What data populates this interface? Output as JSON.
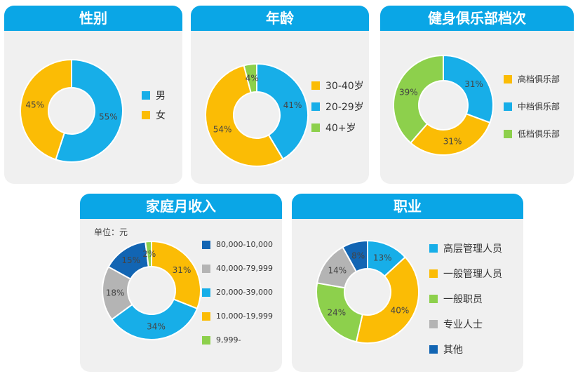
{
  "chart_data": [
    {
      "id": "gender",
      "type": "pie",
      "title": "性别",
      "categories": [
        "男",
        "女"
      ],
      "values": [
        55,
        45
      ],
      "labels": [
        "55%",
        "45%"
      ],
      "colors": [
        "#17aee8",
        "#fbbc05"
      ],
      "legend_position": "right"
    },
    {
      "id": "age",
      "type": "pie",
      "title": "年龄",
      "categories": [
        "30-40岁",
        "20-29岁",
        "40+岁"
      ],
      "slice_order": [
        "20-29岁",
        "30-40岁",
        "40+岁"
      ],
      "values": [
        41,
        54,
        4
      ],
      "labels": [
        "41%",
        "54%",
        "4%"
      ],
      "colors": [
        "#17aee8",
        "#fbbc05",
        "#8dd04c"
      ],
      "legend_colors": [
        "#fbbc05",
        "#17aee8",
        "#8dd04c"
      ],
      "legend_position": "right"
    },
    {
      "id": "club",
      "type": "pie",
      "title": "健身俱乐部档次",
      "categories": [
        "高档俱乐部",
        "中档俱乐部",
        "低档俱乐部"
      ],
      "slice_order": [
        "中档俱乐部",
        "高档俱乐部",
        "低档俱乐部"
      ],
      "values": [
        31,
        31,
        39
      ],
      "labels": [
        "31%",
        "31%",
        "39%"
      ],
      "colors": [
        "#17aee8",
        "#fbbc05",
        "#8dd04c"
      ],
      "legend_colors": [
        "#fbbc05",
        "#17aee8",
        "#8dd04c"
      ],
      "legend_position": "right"
    },
    {
      "id": "income",
      "type": "pie",
      "title": "家庭月收入",
      "unit_label": "单位：元",
      "categories": [
        "80,000-10,000",
        "40,000-79,999",
        "20,000-39,000",
        "10,000-19,999",
        "9,999-"
      ],
      "slice_order": [
        "10,000-19,999",
        "20,000-39,000",
        "40,000-79,999",
        "80,000-10,000",
        "9,999-"
      ],
      "values": [
        31,
        34,
        18,
        15,
        2
      ],
      "labels": [
        "31%",
        "34%",
        "18%",
        "15%",
        "2%"
      ],
      "colors": [
        "#fbbc05",
        "#17aee8",
        "#b4b4b4",
        "#1265b3",
        "#8dd04c"
      ],
      "legend_colors": [
        "#1265b3",
        "#b4b4b4",
        "#17aee8",
        "#fbbc05",
        "#8dd04c"
      ],
      "legend_position": "right"
    },
    {
      "id": "job",
      "type": "pie",
      "title": "职业",
      "categories": [
        "高层管理人员",
        "一般管理人员",
        "一般职员",
        "专业人士",
        "其他"
      ],
      "values": [
        13,
        40,
        24,
        14,
        8
      ],
      "labels": [
        "13%",
        "40%",
        "24%",
        "14%",
        "8%"
      ],
      "colors": [
        "#17aee8",
        "#fbbc05",
        "#8dd04c",
        "#b4b4b4",
        "#1265b3"
      ],
      "legend_position": "right"
    }
  ]
}
